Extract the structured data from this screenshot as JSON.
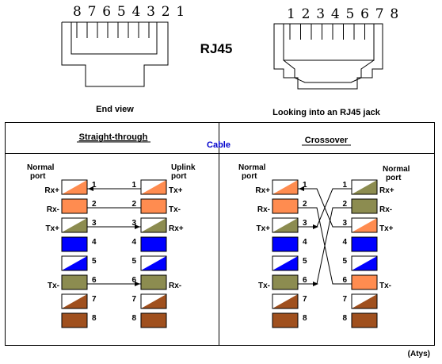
{
  "title": "RJ45",
  "plug": {
    "pin_labels": "8 7 6 5 4 3 2 1",
    "caption": "End view"
  },
  "jack": {
    "pin_labels": "1 2 3 4 5 6 7 8",
    "caption": "Looking into an RJ45 jack"
  },
  "cable_label": "Cable",
  "straight": {
    "heading": "Straight-through",
    "left_port": [
      "Normal",
      "port"
    ],
    "right_port": [
      "Uplink",
      "port"
    ],
    "left_signals": [
      "Rx+",
      "Rx-",
      "Tx+",
      "",
      "",
      "Tx-",
      "",
      ""
    ],
    "right_signals": [
      "Tx+",
      "Tx-",
      "Rx+",
      "",
      "",
      "Rx-",
      "",
      ""
    ],
    "pins": [
      "1",
      "2",
      "3",
      "4",
      "5",
      "6",
      "7",
      "8"
    ]
  },
  "crossover": {
    "heading": "Crossover",
    "left_port": [
      "Normal",
      "port"
    ],
    "right_port": [
      "Normal",
      "port"
    ],
    "left_signals": [
      "Rx+",
      "Rx-",
      "Tx+",
      "",
      "",
      "Tx-",
      "",
      ""
    ],
    "right_signals": [
      "Rx+",
      "Rx-",
      "Tx+",
      "",
      "",
      "Tx-",
      "",
      ""
    ],
    "pins": [
      "1",
      "2",
      "3",
      "4",
      "5",
      "6",
      "7",
      "8"
    ]
  },
  "credit": "(Atys)",
  "colors": {
    "white_orange": [
      "#ffffff",
      "#ff8c50"
    ],
    "orange": "#ff8c50",
    "white_green": [
      "#ffffff",
      "#8c8c50"
    ],
    "blue": "#0000ff",
    "white_blue": [
      "#ffffff",
      "#0000ff"
    ],
    "green": "#8c8c50",
    "white_brown": [
      "#ffffff",
      "#a0501e"
    ],
    "brown": "#a0501e"
  }
}
